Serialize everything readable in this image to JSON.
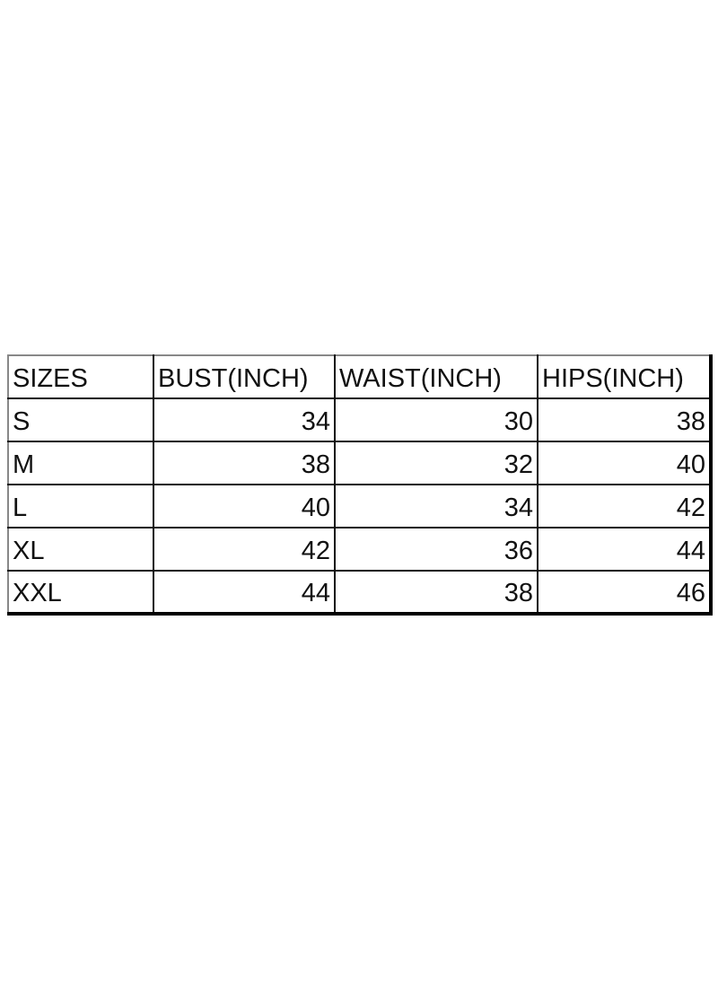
{
  "table": {
    "header": [
      "SIZES",
      "BUST(INCH)",
      "WAIST(INCH)",
      "HIPS(INCH)"
    ],
    "rows": [
      [
        "S",
        34,
        30,
        38
      ],
      [
        "M",
        38,
        32,
        40
      ],
      [
        "L",
        40,
        34,
        42
      ],
      [
        "XL",
        42,
        36,
        44
      ],
      [
        "XXL",
        44,
        38,
        46
      ]
    ]
  }
}
